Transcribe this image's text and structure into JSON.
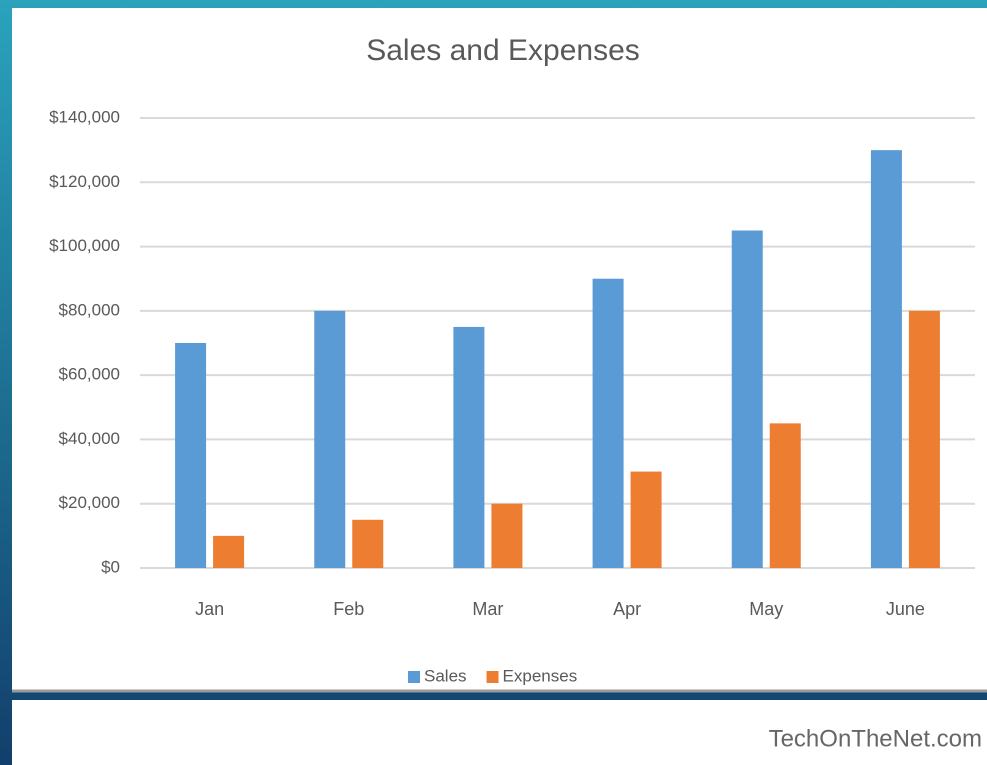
{
  "chart_data": {
    "type": "bar",
    "title": "Sales and Expenses",
    "categories": [
      "Jan",
      "Feb",
      "Mar",
      "Apr",
      "May",
      "June"
    ],
    "series": [
      {
        "name": "Sales",
        "color": "#5b9bd5",
        "values": [
          70000,
          80000,
          75000,
          90000,
          105000,
          130000
        ]
      },
      {
        "name": "Expenses",
        "color": "#ed7d31",
        "values": [
          10000,
          15000,
          20000,
          30000,
          45000,
          80000
        ]
      }
    ],
    "ylim": [
      0,
      140000
    ],
    "yticks": [
      {
        "value": 0,
        "label": "$0"
      },
      {
        "value": 20000,
        "label": "$20,000"
      },
      {
        "value": 40000,
        "label": "$40,000"
      },
      {
        "value": 60000,
        "label": "$60,000"
      },
      {
        "value": 80000,
        "label": "$80,000"
      },
      {
        "value": 100000,
        "label": "$100,000"
      },
      {
        "value": 120000,
        "label": "$120,000"
      },
      {
        "value": 140000,
        "label": "$140,000"
      }
    ],
    "grid": true,
    "legend": "bottom",
    "source": "TechOnTheNet.com"
  }
}
